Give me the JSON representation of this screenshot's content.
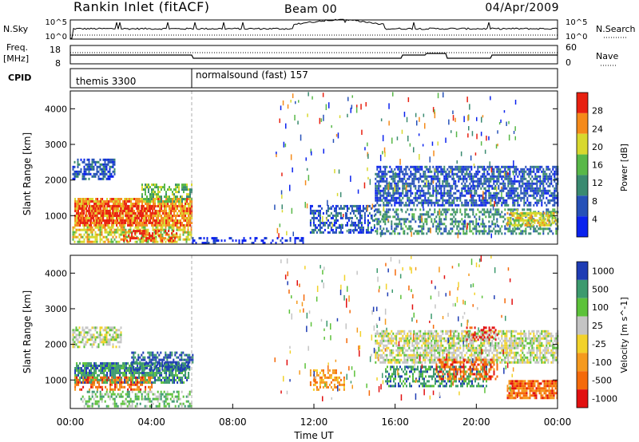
{
  "header": {
    "station_title": "Rankin Inlet (fitACF)",
    "beam_label": "Beam 00",
    "date": "04/Apr/2009"
  },
  "noise_panel": {
    "left_label": "N.Sky",
    "right_label": "N.Search",
    "left_ticks": [
      "10^5",
      "10^0"
    ],
    "right_ticks": [
      "10^5",
      "10^0"
    ]
  },
  "freq_panel": {
    "left_label_line1": "Freq.",
    "left_label_line2": "[MHz]",
    "right_label": "Nave",
    "left_ticks": [
      "18",
      "8"
    ],
    "right_ticks": [
      "60",
      "0"
    ]
  },
  "cpid_panel": {
    "label": "CPID",
    "segments": [
      {
        "name": "themis 3300",
        "start_hour": 0
      },
      {
        "name": "normalsound (fast) 157",
        "start_hour": 6
      }
    ]
  },
  "chart_data": [
    {
      "type": "heatmap",
      "name": "power-panel",
      "ylabel": "Slant Range [km]",
      "yticks": [
        "1000",
        "2000",
        "3000",
        "4000"
      ],
      "ylim": [
        200,
        4500
      ],
      "xlim": [
        0,
        24
      ],
      "colorbar_label": "Power [dB]",
      "colorbar_ticks": [
        "4",
        "8",
        "12",
        "16",
        "20",
        "24",
        "28"
      ],
      "colorbar_colors": [
        "#0a22ee",
        "#2651b8",
        "#3a8a70",
        "#58b848",
        "#d8d82e",
        "#f58a1a",
        "#e82010"
      ],
      "regions": [
        {
          "t0": 0.2,
          "t1": 6.0,
          "r0": 700,
          "r1": 1500,
          "level": 5,
          "density": 0.85
        },
        {
          "t0": 0.4,
          "t1": 4.2,
          "r0": 800,
          "r1": 1300,
          "level": 6,
          "density": 0.55
        },
        {
          "t0": 0.1,
          "t1": 6.0,
          "r0": 250,
          "r1": 700,
          "level": 4,
          "density": 0.65
        },
        {
          "t0": 2.6,
          "t1": 5.2,
          "r0": 300,
          "r1": 600,
          "level": 6,
          "density": 0.45
        },
        {
          "t0": 0.1,
          "t1": 2.2,
          "r0": 2000,
          "r1": 2600,
          "level": 1,
          "density": 0.6
        },
        {
          "t0": 3.5,
          "t1": 6.0,
          "r0": 1400,
          "r1": 1900,
          "level": 3,
          "density": 0.6
        },
        {
          "t0": 11.8,
          "t1": 15.0,
          "r0": 500,
          "r1": 1300,
          "level": 1,
          "density": 0.5
        },
        {
          "t0": 15.0,
          "t1": 24.0,
          "r0": 1300,
          "r1": 2400,
          "level": 1,
          "density": 0.65
        },
        {
          "t0": 15.0,
          "t1": 24.0,
          "r0": 500,
          "r1": 1200,
          "level": 2,
          "density": 0.45
        },
        {
          "t0": 21.5,
          "t1": 24.0,
          "r0": 700,
          "r1": 1100,
          "level": 4,
          "density": 0.7
        },
        {
          "t0": 6.0,
          "t1": 11.5,
          "r0": 200,
          "r1": 400,
          "level": 0,
          "density": 0.35
        }
      ]
    },
    {
      "type": "heatmap",
      "name": "velocity-panel",
      "ylabel": "Slant Range [km]",
      "yticks": [
        "1000",
        "2000",
        "3000",
        "4000"
      ],
      "ylim": [
        200,
        4500
      ],
      "xlim": [
        0,
        24
      ],
      "xlabel": "Time UT",
      "xticks": [
        "00:00",
        "04:00",
        "08:00",
        "12:00",
        "16:00",
        "20:00",
        "00:00"
      ],
      "colorbar_label": "Velocity [m s^-1]",
      "colorbar_ticks": [
        "1000",
        "500",
        "100",
        "25",
        "-25",
        "-100",
        "-500",
        "-1000"
      ],
      "colorbar_colors": [
        "#1e3cb4",
        "#3c9a6e",
        "#5cc23a",
        "#c4c4c4",
        "#f2d22a",
        "#f59a1e",
        "#f56a0a",
        "#e21010"
      ],
      "regions": [
        {
          "t0": 0.2,
          "t1": 5.8,
          "r0": 900,
          "r1": 1500,
          "level": 1,
          "density": 0.8
        },
        {
          "t0": 0.2,
          "t1": 4.0,
          "r0": 700,
          "r1": 1100,
          "level": 6,
          "density": 0.5
        },
        {
          "t0": 0.1,
          "t1": 2.5,
          "r0": 1900,
          "r1": 2500,
          "level": 3,
          "density": 0.55
        },
        {
          "t0": 3.0,
          "t1": 6.0,
          "r0": 1300,
          "r1": 1800,
          "level": 0,
          "density": 0.6
        },
        {
          "t0": 0.5,
          "t1": 6.0,
          "r0": 250,
          "r1": 700,
          "level": 2,
          "density": 0.45
        },
        {
          "t0": 11.8,
          "t1": 13.5,
          "r0": 700,
          "r1": 1300,
          "level": 5,
          "density": 0.5
        },
        {
          "t0": 15.0,
          "t1": 24.0,
          "r0": 1500,
          "r1": 2400,
          "level": 3,
          "density": 0.7
        },
        {
          "t0": 15.5,
          "t1": 20.5,
          "r0": 800,
          "r1": 1400,
          "level": 1,
          "density": 0.5
        },
        {
          "t0": 18.0,
          "t1": 21.0,
          "r0": 1000,
          "r1": 1600,
          "level": 6,
          "density": 0.5
        },
        {
          "t0": 21.5,
          "t1": 24.0,
          "r0": 500,
          "r1": 1000,
          "level": 6,
          "density": 0.8
        },
        {
          "t0": 19.5,
          "t1": 21.0,
          "r0": 2100,
          "r1": 2500,
          "level": 7,
          "density": 0.35
        }
      ]
    }
  ]
}
